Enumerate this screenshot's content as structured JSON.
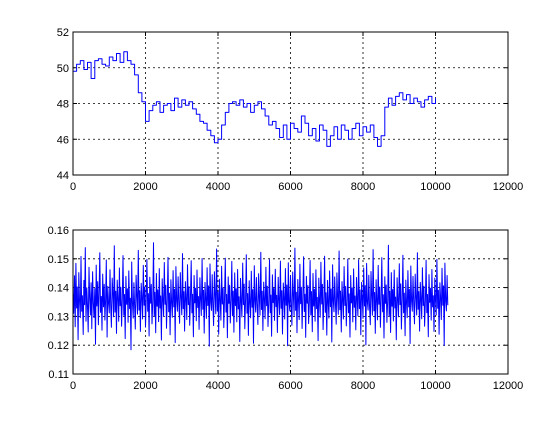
{
  "chart_data": [
    {
      "type": "line",
      "title": "",
      "xlabel": "",
      "ylabel": "",
      "xlim": [
        0,
        12000
      ],
      "ylim": [
        44,
        52
      ],
      "grid": true,
      "xticks": [
        "0",
        "2000",
        "4000",
        "6000",
        "8000",
        "10000",
        "12000"
      ],
      "yticks": [
        "44",
        "46",
        "48",
        "50",
        "52"
      ],
      "series": [
        {
          "color": "#0000ff",
          "x": [
            0,
            100,
            200,
            300,
            400,
            500,
            600,
            700,
            800,
            900,
            1000,
            1100,
            1200,
            1300,
            1400,
            1500,
            1600,
            1700,
            1800,
            1900,
            2000,
            2100,
            2200,
            2300,
            2400,
            2500,
            2600,
            2700,
            2800,
            2900,
            3000,
            3100,
            3200,
            3300,
            3400,
            3500,
            3600,
            3700,
            3800,
            3900,
            4000,
            4100,
            4200,
            4300,
            4400,
            4500,
            4600,
            4700,
            4800,
            4900,
            5000,
            5100,
            5200,
            5300,
            5400,
            5500,
            5600,
            5700,
            5800,
            5900,
            6000,
            6100,
            6200,
            6300,
            6400,
            6500,
            6600,
            6700,
            6800,
            6900,
            7000,
            7100,
            7200,
            7300,
            7400,
            7500,
            7600,
            7700,
            7800,
            7900,
            8000,
            8100,
            8200,
            8300,
            8400,
            8500,
            8600,
            8700,
            8800,
            8900,
            9000,
            9100,
            9200,
            9300,
            9400,
            9500,
            9600,
            9700,
            9800,
            9900,
            10000
          ],
          "y": [
            49.8,
            50.2,
            50.4,
            49.9,
            50.3,
            49.4,
            50.4,
            50.5,
            50.2,
            50.1,
            50.6,
            50.4,
            50.8,
            50.3,
            50.9,
            50.4,
            50.2,
            49.6,
            48.6,
            48.1,
            47.0,
            47.6,
            47.9,
            48.1,
            47.5,
            47.9,
            48.0,
            47.6,
            48.3,
            47.8,
            48.2,
            47.9,
            48.1,
            47.7,
            47.4,
            47.0,
            46.9,
            46.5,
            46.2,
            45.8,
            46.0,
            46.8,
            47.5,
            48.0,
            48.1,
            47.9,
            48.2,
            47.8,
            48.0,
            47.5,
            47.9,
            48.1,
            47.7,
            47.3,
            46.8,
            47.0,
            46.6,
            46.1,
            46.8,
            46.0,
            46.9,
            46.6,
            46.4,
            47.3,
            46.9,
            46.2,
            46.6,
            45.9,
            46.8,
            46.5,
            45.6,
            46.2,
            46.7,
            46.0,
            46.8,
            46.5,
            46.0,
            46.6,
            46.9,
            46.2,
            46.7,
            46.4,
            46.8,
            46.1,
            45.6,
            46.2,
            47.8,
            48.3,
            47.9,
            48.4,
            48.6,
            48.2,
            48.5,
            48.0,
            48.3,
            48.1,
            47.8,
            48.2,
            48.4,
            48.0,
            48.3
          ]
        }
      ]
    },
    {
      "type": "line",
      "title": "",
      "xlabel": "",
      "ylabel": "",
      "xlim": [
        0,
        12000
      ],
      "ylim": [
        0.11,
        0.16
      ],
      "grid": true,
      "xticks": [
        "0",
        "2000",
        "4000",
        "6000",
        "8000",
        "10000",
        "12000"
      ],
      "yticks": [
        "0.11",
        "0.12",
        "0.13",
        "0.14",
        "0.15",
        "0.16"
      ],
      "series": [
        {
          "color": "#0000ff",
          "x_start": 0,
          "x_step": 20,
          "mean": 0.1355,
          "values": [
            0.1381,
            0.1311,
            0.1441,
            0.1264,
            0.1484,
            0.1329,
            0.1402,
            0.1219,
            0.1452,
            0.1356,
            0.1296,
            0.1508,
            0.1318,
            0.1372,
            0.1237,
            0.1425,
            0.1341,
            0.1539,
            0.1283,
            0.1399,
            0.1336,
            0.1246,
            0.1471,
            0.1362,
            0.1305,
            0.1417,
            0.1257,
            0.1455,
            0.1348,
            0.1296,
            0.1397,
            0.1203,
            0.1478,
            0.1336,
            0.1421,
            0.1271,
            0.1385,
            0.1521,
            0.1314,
            0.1369,
            0.1252,
            0.1447,
            0.1333,
            0.1411,
            0.1287,
            0.1356,
            0.1496,
            0.1228,
            0.1404,
            0.1349,
            0.1312,
            0.1462,
            0.1339,
            0.1262,
            0.1433,
            0.1378,
            0.1299,
            0.1545,
            0.1315,
            0.1387,
            0.1241,
            0.1426,
            0.1358,
            0.1283,
            0.1468,
            0.1337,
            0.1401,
            0.1266,
            0.1359,
            0.1511,
            0.1304,
            0.1376,
            0.1223,
            0.1439,
            0.1342,
            0.1396,
            0.1279,
            0.1458,
            0.1327,
            0.1363,
            0.1184,
            0.1489,
            0.1351,
            0.1294,
            0.1417,
            0.1338,
            0.1256,
            0.1443,
            0.1371,
            0.1308,
            0.1529,
            0.1322,
            0.1389,
            0.1248,
            0.1415,
            0.1364,
            0.1291,
            0.1477,
            0.1339,
            0.1402,
            0.1263,
            0.1357,
            0.1498,
            0.1318,
            0.1379,
            0.1232,
            0.1436,
            0.1346,
            0.1411,
            0.1274,
            0.1352,
            0.1556,
            0.1301,
            0.1384,
            0.1243,
            0.1449,
            0.1335,
            0.1392,
            0.1282,
            0.1466,
            0.1329,
            0.1371,
            0.1218,
            0.1431,
            0.1355,
            0.1301,
            0.1487,
            0.1342,
            0.1408,
            0.1259,
            0.1361,
            0.1505,
            0.1316,
            0.1381,
            0.1236,
            0.1427,
            0.1348,
            0.1297,
            0.1459,
            0.1333,
            0.1394,
            0.1209,
            0.1473,
            0.1352,
            0.1318,
            0.1438,
            0.1339,
            0.1276,
            0.1452,
            0.1367,
            0.1306,
            0.1518,
            0.1327,
            0.1386,
            0.1249,
            0.1421,
            0.1358,
            0.1289,
            0.1479,
            0.1341,
            0.1403,
            0.1269,
            0.1355,
            0.1493,
            0.1312,
            0.1377,
            0.1229,
            0.1442,
            0.1347,
            0.1398,
            0.1285,
            0.1461,
            0.1331,
            0.1369,
            0.1255,
            0.1434,
            0.1359,
            0.1303,
            0.1501,
            0.1325,
            0.1391,
            0.1242,
            0.1418,
            0.1362,
            0.1293,
            0.1469,
            0.1338,
            0.1406,
            0.1197,
            0.1482,
            0.1349,
            0.1321,
            0.1445,
            0.1336,
            0.1268,
            0.1455,
            0.1374,
            0.1309,
            0.1534,
            0.1319,
            0.1383,
            0.1238,
            0.1429,
            0.1353,
            0.1287,
            0.1474,
            0.1343,
            0.1399,
            0.1261,
            0.1358,
            0.1502,
            0.1315,
            0.1376,
            0.1226,
            0.1437,
            0.1345,
            0.1408,
            0.1277,
            0.1357,
            0.1491,
            0.1302,
            0.1388,
            0.1245,
            0.1451,
            0.1337,
            0.1396,
            0.1281,
            0.1463,
            0.1326,
            0.1368,
            0.1213,
            0.1432,
            0.1354,
            0.1298,
            0.1485,
            0.1341,
            0.1412,
            0.1257,
            0.1363,
            0.1514,
            0.1311,
            0.1379,
            0.1234,
            0.1424,
            0.1349,
            0.1295,
            0.1457,
            0.1332,
            0.1393,
            0.1207,
            0.1476,
            0.1356,
            0.1315,
            0.1435,
            0.1342,
            0.1272,
            0.1448,
            0.1368,
            0.1304,
            0.1523,
            0.1324,
            0.1387,
            0.1251,
            0.1419,
            0.1361,
            0.1292,
            0.1471,
            0.1337,
            0.1405,
            0.1265,
            0.1356,
            0.1497,
            0.1313,
            0.1374,
            0.1231,
            0.1444,
            0.1348,
            0.1397,
            0.1286,
            0.1464,
            0.1334,
            0.1373,
            0.1244,
            0.1436,
            0.1357,
            0.1306,
            0.1492,
            0.1328,
            0.1389,
            0.1239,
            0.1416,
            0.1363,
            0.1291,
            0.1466,
            0.1339,
            0.1409,
            0.1198,
            0.1486,
            0.1351,
            0.1319,
            0.1441,
            0.1338,
            0.1269,
            0.1454,
            0.1371,
            0.1303,
            0.1537,
            0.1321,
            0.1384,
            0.1243,
            0.1428,
            0.1355,
            0.1289,
            0.1481,
            0.1344,
            0.1401,
            0.1258,
            0.1359,
            0.1507,
            0.1317,
            0.1377,
            0.1227,
            0.1439,
            0.1346,
            0.1407,
            0.1275,
            0.1353,
            0.1494,
            0.1305,
            0.1386,
            0.1247,
            0.1449,
            0.1336,
            0.1394,
            0.1283,
            0.1462,
            0.1327,
            0.1366,
            0.1216,
            0.1433,
            0.1356,
            0.1297,
            0.1488,
            0.1343,
            0.1411,
            0.1254,
            0.1362,
            0.1509,
            0.1314,
            0.1382,
            0.1235,
            0.1425,
            0.1351,
            0.1294,
            0.1458,
            0.1334,
            0.1395,
            0.1211,
            0.1479,
            0.1353,
            0.1316,
            0.1437,
            0.1341,
            0.1273,
            0.1451,
            0.1369,
            0.1307,
            0.1527,
            0.1323,
            0.1388,
            0.1246,
            0.1421,
            0.1359,
            0.1291,
            0.1473,
            0.1338,
            0.1404,
            0.1267,
            0.1357,
            0.1499,
            0.1312,
            0.1378,
            0.1228,
            0.1442,
            0.1347,
            0.1399,
            0.1281,
            0.1465,
            0.1332,
            0.1371,
            0.1253,
            0.1435,
            0.1358,
            0.1302,
            0.1496,
            0.1327,
            0.1392,
            0.1236,
            0.1418,
            0.1364,
            0.1293,
            0.1468,
            0.1336,
            0.1407,
            0.1201,
            0.1484,
            0.1352,
            0.1322,
            0.1443,
            0.1339,
            0.1271,
            0.1456,
            0.1373,
            0.1304,
            0.1532,
            0.1319,
            0.1383,
            0.1241,
            0.1427,
            0.1354,
            0.1288,
            0.1477,
            0.1342,
            0.1402,
            0.1262,
            0.1358,
            0.1504,
            0.1316,
            0.1375,
            0.1225,
            0.1438,
            0.1345,
            0.1409,
            0.1279,
            0.1356,
            0.1547,
            0.1301,
            0.1387,
            0.1244,
            0.1452,
            0.1335,
            0.1393,
            0.1284,
            0.1461,
            0.1329,
            0.1367,
            0.1219,
            0.1434,
            0.1357,
            0.1299,
            0.1483,
            0.1341,
            0.1413,
            0.1256,
            0.1364,
            0.1512,
            0.1312,
            0.1381,
            0.1233,
            0.1426,
            0.1349,
            0.1296,
            0.1459,
            0.1333,
            0.1394,
            0.1206,
            0.1475,
            0.1352,
            0.1318,
            0.1439,
            0.1337,
            0.1274,
            0.1447,
            0.1367,
            0.1305,
            0.1521,
            0.1325,
            0.1386,
            0.1249,
            0.1418,
            0.1361,
            0.1292,
            0.1469,
            0.1338,
            0.1405,
            0.1266,
            0.1355,
            0.1495,
            0.1313,
            0.1376,
            0.1229,
            0.1445,
            0.1349,
            0.1398,
            0.1287,
            0.1463,
            0.1333,
            0.1372,
            0.1248,
            0.1433,
            0.1358,
            0.1305,
            0.1498,
            0.1328,
            0.1391,
            0.1238,
            0.1417,
            0.1363,
            0.1289,
            0.1467,
            0.1339,
            0.1406,
            0.1199,
            0.1485,
            0.1351,
            0.1319,
            0.1442,
            0.1339
          ]
        }
      ]
    }
  ]
}
